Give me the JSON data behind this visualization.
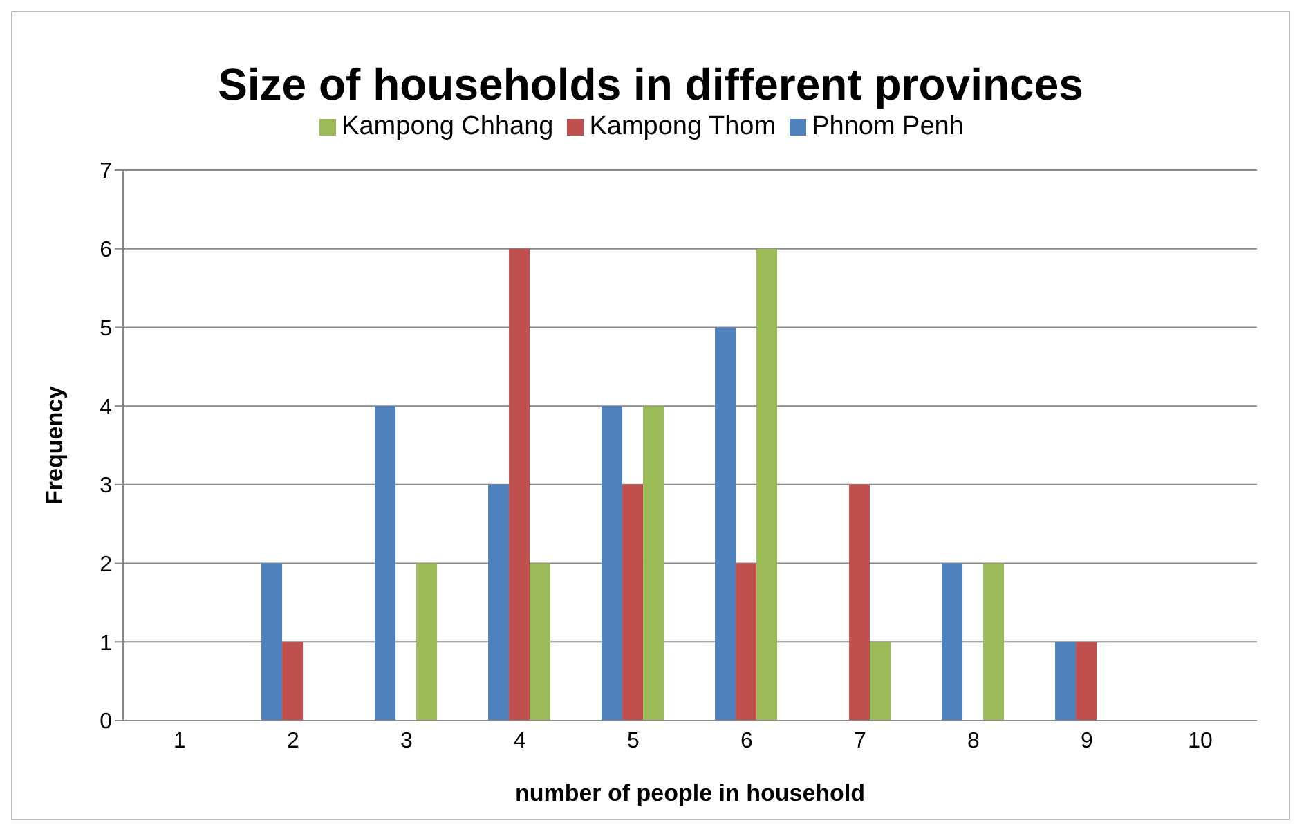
{
  "chart_data": {
    "type": "bar",
    "title": "Size of households in different provinces",
    "xlabel": "number of people in household",
    "ylabel": "Frequency",
    "categories": [
      "1",
      "2",
      "3",
      "4",
      "5",
      "6",
      "7",
      "8",
      "9",
      "10"
    ],
    "series": [
      {
        "name": "Phnom Penh",
        "color": "#4f81bd",
        "values": [
          0,
          2,
          4,
          3,
          4,
          5,
          0,
          2,
          1,
          0
        ]
      },
      {
        "name": "Kampong Thom",
        "color": "#c0504d",
        "values": [
          0,
          1,
          0,
          6,
          3,
          2,
          3,
          0,
          1,
          0
        ]
      },
      {
        "name": "Kampong Chhang",
        "color": "#9bbb59",
        "values": [
          0,
          0,
          2,
          2,
          4,
          6,
          1,
          2,
          0,
          0
        ]
      }
    ],
    "ylim": [
      0,
      7
    ],
    "yticks": [
      0,
      1,
      2,
      3,
      4,
      5,
      6,
      7
    ],
    "grid": "y",
    "legend": "top"
  }
}
